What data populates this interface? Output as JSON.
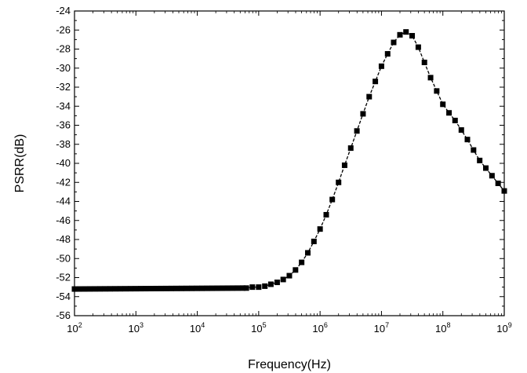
{
  "chart_data": {
    "type": "line",
    "title": "",
    "xlabel": "Frequency(Hz)",
    "ylabel": "PSRR(dB)",
    "x_scale": "log",
    "xlim": [
      100,
      1000000000
    ],
    "ylim": [
      -56,
      -24
    ],
    "x_ticks": [
      {
        "value": 100,
        "base": "10",
        "exp": "2"
      },
      {
        "value": 1000,
        "base": "10",
        "exp": "3"
      },
      {
        "value": 10000,
        "base": "10",
        "exp": "4"
      },
      {
        "value": 100000,
        "base": "10",
        "exp": "5"
      },
      {
        "value": 1000000,
        "base": "10",
        "exp": "6"
      },
      {
        "value": 10000000,
        "base": "10",
        "exp": "7"
      },
      {
        "value": 100000000,
        "base": "10",
        "exp": "8"
      },
      {
        "value": 1000000000,
        "base": "10",
        "exp": "9"
      }
    ],
    "y_ticks": [
      {
        "value": -24,
        "label": "-24"
      },
      {
        "value": -26,
        "label": "-26"
      },
      {
        "value": -28,
        "label": "-28"
      },
      {
        "value": -30,
        "label": "-30"
      },
      {
        "value": -32,
        "label": "-32"
      },
      {
        "value": -34,
        "label": "-34"
      },
      {
        "value": -36,
        "label": "-36"
      },
      {
        "value": -38,
        "label": "-38"
      },
      {
        "value": -40,
        "label": "-40"
      },
      {
        "value": -42,
        "label": "-42"
      },
      {
        "value": -44,
        "label": "-44"
      },
      {
        "value": -46,
        "label": "-46"
      },
      {
        "value": -48,
        "label": "-48"
      },
      {
        "value": -50,
        "label": "-50"
      },
      {
        "value": -52,
        "label": "-52"
      },
      {
        "value": -54,
        "label": "-54"
      },
      {
        "value": -56,
        "label": "-56"
      }
    ],
    "grid": false,
    "legend": "none",
    "line_style": "dashed",
    "marker": "square",
    "color": "#000000",
    "series": [
      {
        "x": [
          100,
          10000,
          63000,
          79000,
          100000,
          126000,
          158000,
          200000,
          251000,
          316000,
          398000,
          501000,
          631000,
          794000,
          1000000,
          1260000,
          1580000,
          2000000,
          2510000,
          3160000,
          3980000,
          5010000,
          6310000,
          7940000,
          10000000,
          12600000,
          15800000,
          20000000,
          25100000,
          31600000,
          39800000,
          50100000,
          63100000,
          79400000,
          100000000,
          126000000,
          158000000,
          200000000,
          251000000,
          316000000,
          398000000,
          501000000,
          631000000,
          794000000,
          1000000000
        ],
        "y": [
          -53.2,
          -53.2,
          -53.1,
          -53.0,
          -53.0,
          -52.9,
          -52.7,
          -52.5,
          -52.2,
          -51.8,
          -51.2,
          -50.4,
          -49.4,
          -48.2,
          -46.9,
          -45.4,
          -43.8,
          -42.0,
          -40.2,
          -38.4,
          -36.6,
          -34.8,
          -33.0,
          -31.4,
          -29.8,
          -28.5,
          -27.3,
          -26.5,
          -26.2,
          -26.6,
          -27.8,
          -29.4,
          -31.0,
          -32.4,
          -33.8,
          -34.7,
          -35.5,
          -36.5,
          -37.5,
          -38.6,
          -39.7,
          -40.5,
          -41.3,
          -42.1,
          -42.9
        ]
      }
    ]
  }
}
